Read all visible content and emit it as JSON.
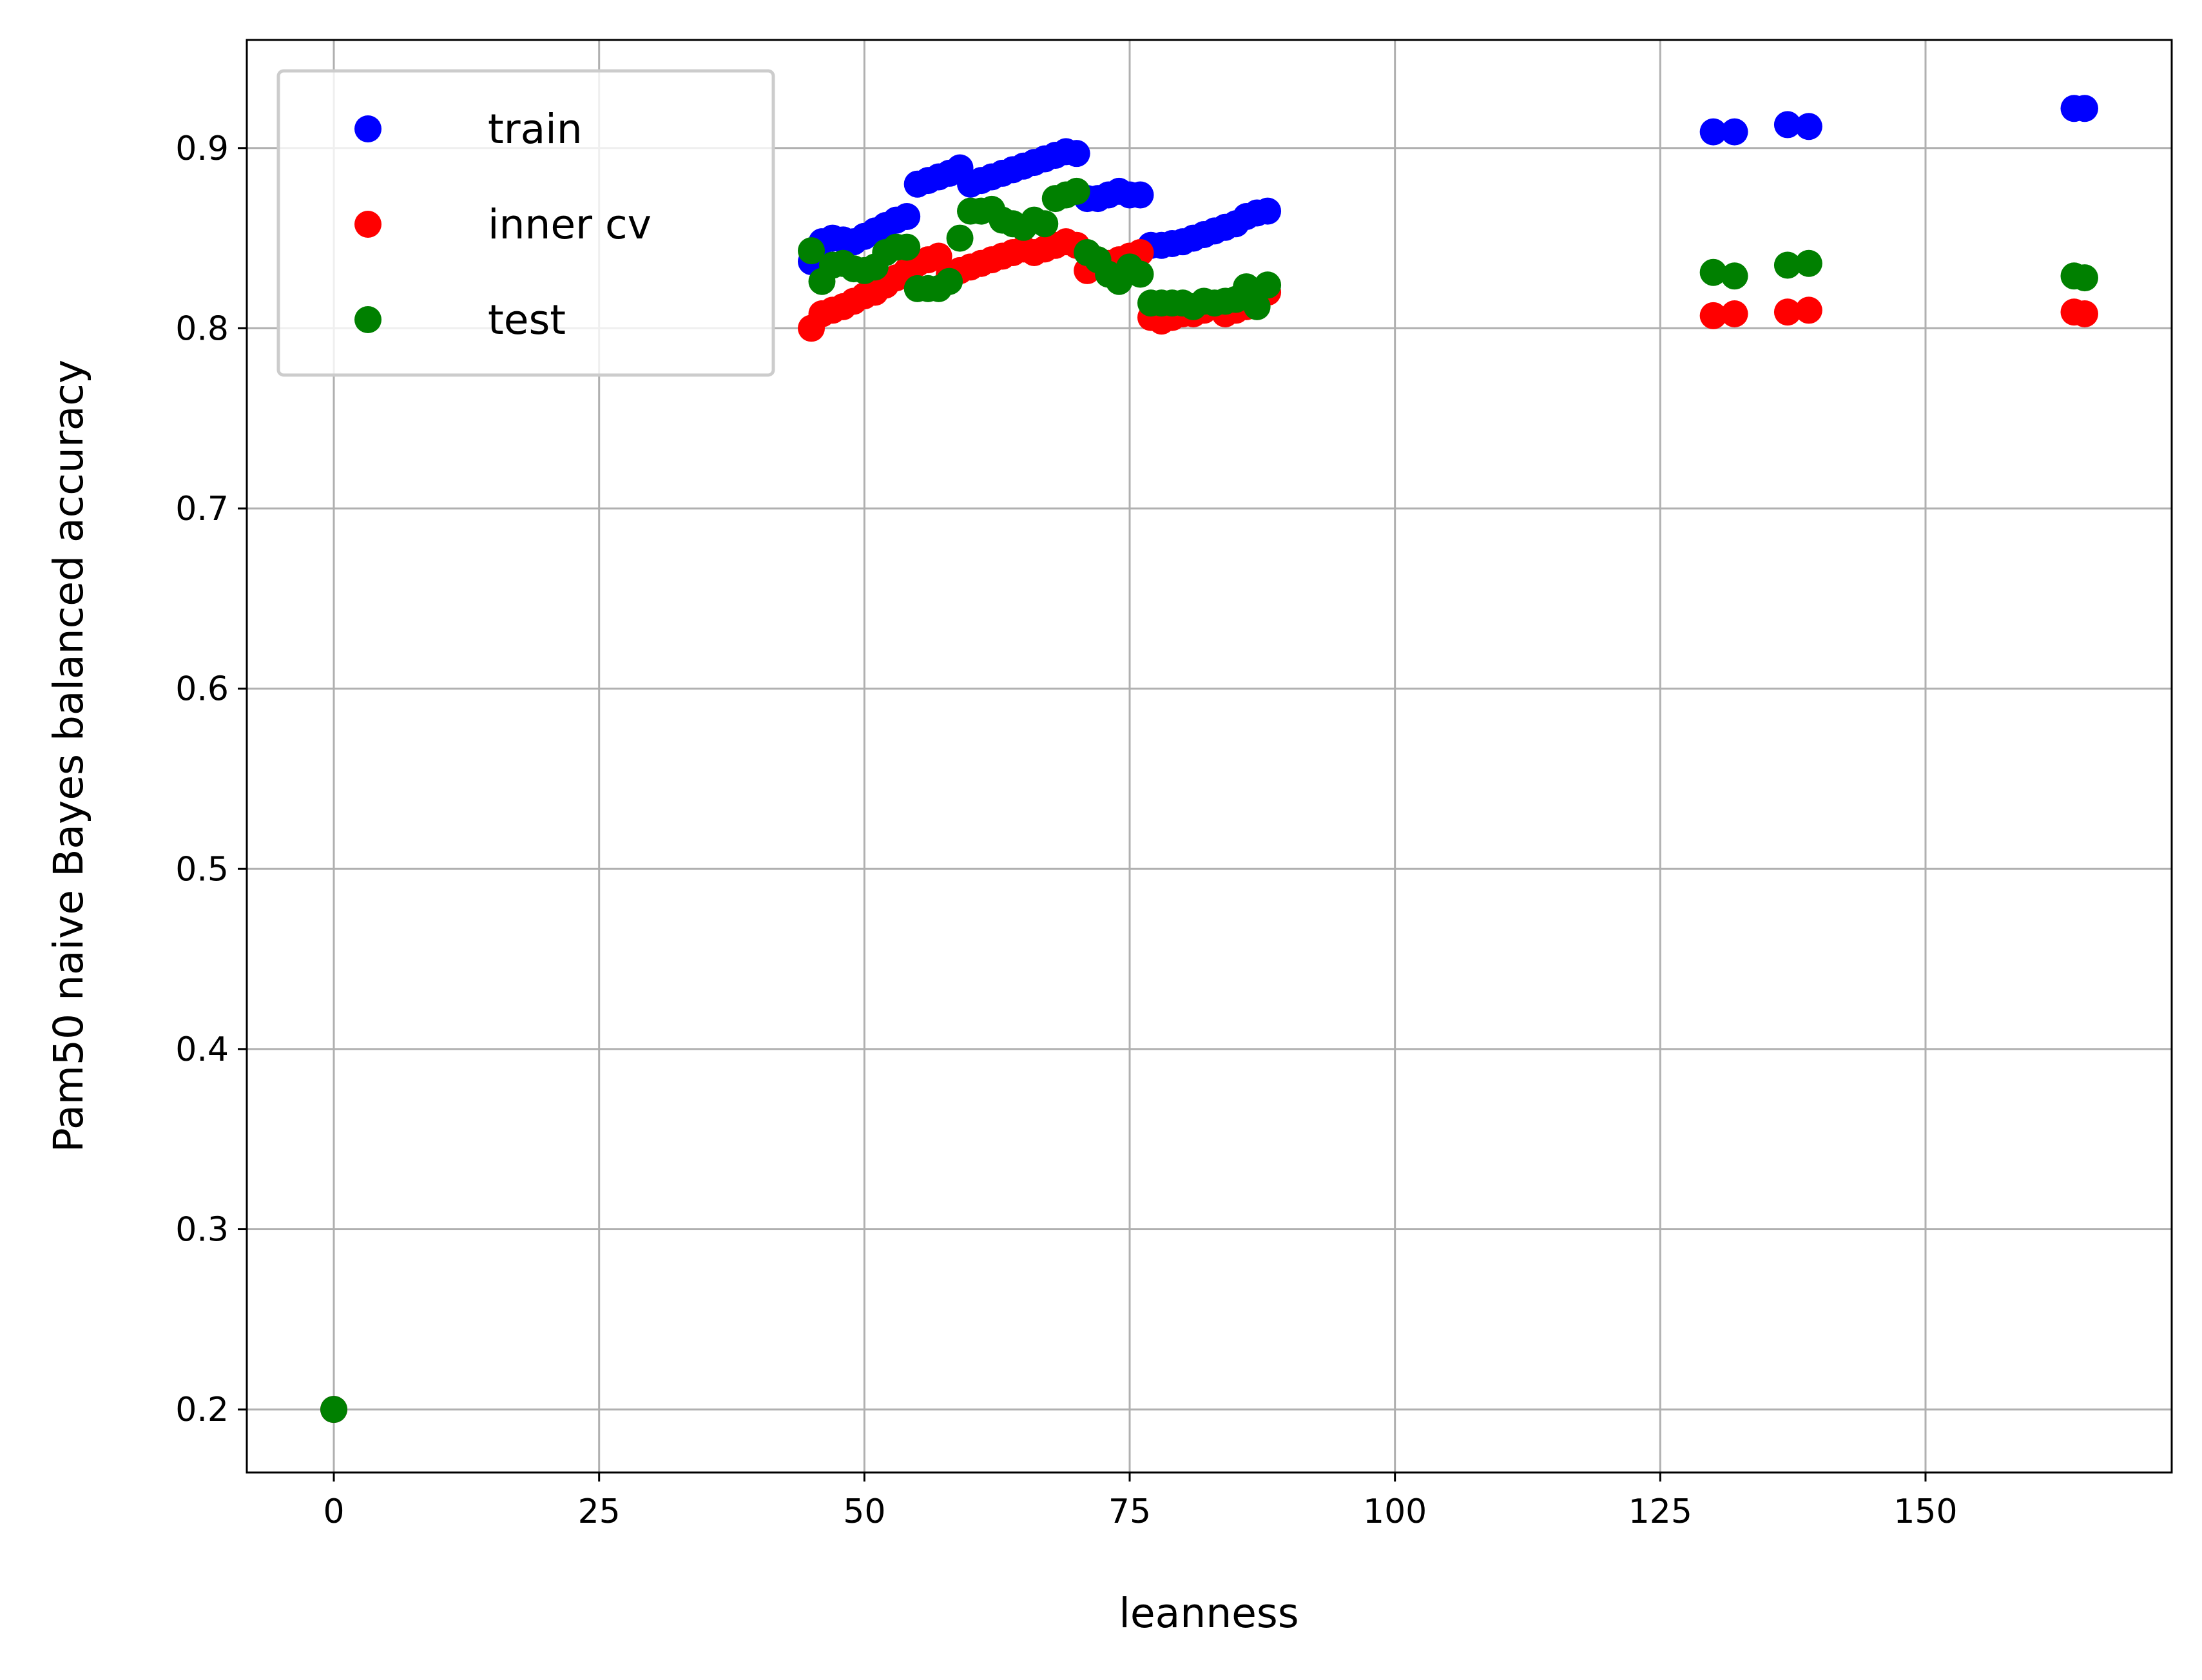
{
  "chart_data": {
    "type": "scatter",
    "title": "",
    "xlabel": "leanness",
    "ylabel": "Pam50 naive Bayes balanced accuracy",
    "xlim": [
      -8.2,
      173.2
    ],
    "ylim": [
      0.165,
      0.96
    ],
    "xticks": [
      0,
      25,
      50,
      75,
      100,
      125,
      150
    ],
    "xtick_labels": [
      "0",
      "25",
      "50",
      "75",
      "100",
      "125",
      "150"
    ],
    "yticks": [
      0.2,
      0.3,
      0.4,
      0.5,
      0.6,
      0.7,
      0.8,
      0.9
    ],
    "ytick_labels": [
      "0.2",
      "0.3",
      "0.4",
      "0.5",
      "0.6",
      "0.7",
      "0.8",
      "0.9"
    ],
    "grid": true,
    "legend_position": "top-left",
    "series": [
      {
        "name": "train",
        "color": "#0000ff",
        "x": [
          0,
          45,
          46,
          47,
          48,
          49,
          50,
          51,
          52,
          53,
          54,
          55,
          56,
          57,
          58,
          59,
          60,
          61,
          62,
          63,
          64,
          65,
          66,
          67,
          68,
          69,
          70,
          71,
          72,
          73,
          74,
          75,
          76,
          77,
          78,
          79,
          80,
          81,
          82,
          83,
          84,
          85,
          86,
          87,
          88,
          130,
          132,
          137,
          139,
          164,
          165
        ],
        "y": [
          0.2,
          0.837,
          0.848,
          0.85,
          0.849,
          0.848,
          0.851,
          0.854,
          0.857,
          0.86,
          0.862,
          0.88,
          0.882,
          0.884,
          0.886,
          0.889,
          0.88,
          0.882,
          0.884,
          0.886,
          0.888,
          0.89,
          0.892,
          0.894,
          0.896,
          0.898,
          0.897,
          0.872,
          0.872,
          0.874,
          0.876,
          0.874,
          0.874,
          0.846,
          0.846,
          0.847,
          0.848,
          0.85,
          0.852,
          0.854,
          0.856,
          0.858,
          0.862,
          0.864,
          0.865,
          0.909,
          0.909,
          0.913,
          0.912,
          0.922,
          0.922
        ]
      },
      {
        "name": "inner cv",
        "color": "#ff0000",
        "x": [
          0,
          45,
          46,
          47,
          48,
          49,
          50,
          51,
          52,
          53,
          54,
          55,
          56,
          57,
          58,
          59,
          60,
          61,
          62,
          63,
          64,
          65,
          66,
          67,
          68,
          69,
          70,
          71,
          72,
          73,
          74,
          75,
          76,
          77,
          78,
          79,
          80,
          81,
          82,
          83,
          84,
          85,
          86,
          87,
          88,
          130,
          132,
          137,
          139,
          164,
          165
        ],
        "y": [
          0.2,
          0.8,
          0.808,
          0.81,
          0.812,
          0.815,
          0.818,
          0.82,
          0.824,
          0.828,
          0.832,
          0.836,
          0.838,
          0.84,
          0.83,
          0.832,
          0.834,
          0.836,
          0.838,
          0.84,
          0.842,
          0.844,
          0.842,
          0.844,
          0.846,
          0.848,
          0.846,
          0.832,
          0.834,
          0.836,
          0.838,
          0.84,
          0.842,
          0.806,
          0.804,
          0.806,
          0.808,
          0.808,
          0.81,
          0.812,
          0.808,
          0.81,
          0.812,
          0.816,
          0.82,
          0.807,
          0.808,
          0.809,
          0.81,
          0.809,
          0.808
        ]
      },
      {
        "name": "test",
        "color": "#008000",
        "x": [
          0,
          45,
          46,
          47,
          48,
          49,
          50,
          51,
          52,
          53,
          54,
          55,
          56,
          57,
          58,
          59,
          60,
          61,
          62,
          63,
          64,
          65,
          66,
          67,
          68,
          69,
          70,
          71,
          72,
          73,
          74,
          75,
          76,
          77,
          78,
          79,
          80,
          81,
          82,
          83,
          84,
          85,
          86,
          87,
          88,
          130,
          132,
          137,
          139,
          164,
          165
        ],
        "y": [
          0.2,
          0.843,
          0.826,
          0.835,
          0.836,
          0.833,
          0.832,
          0.834,
          0.842,
          0.845,
          0.845,
          0.822,
          0.822,
          0.822,
          0.826,
          0.85,
          0.865,
          0.865,
          0.866,
          0.86,
          0.858,
          0.856,
          0.86,
          0.858,
          0.872,
          0.874,
          0.876,
          0.842,
          0.838,
          0.83,
          0.826,
          0.834,
          0.83,
          0.814,
          0.814,
          0.814,
          0.814,
          0.812,
          0.815,
          0.814,
          0.815,
          0.816,
          0.823,
          0.812,
          0.824,
          0.831,
          0.829,
          0.835,
          0.836,
          0.829,
          0.828
        ]
      }
    ]
  }
}
